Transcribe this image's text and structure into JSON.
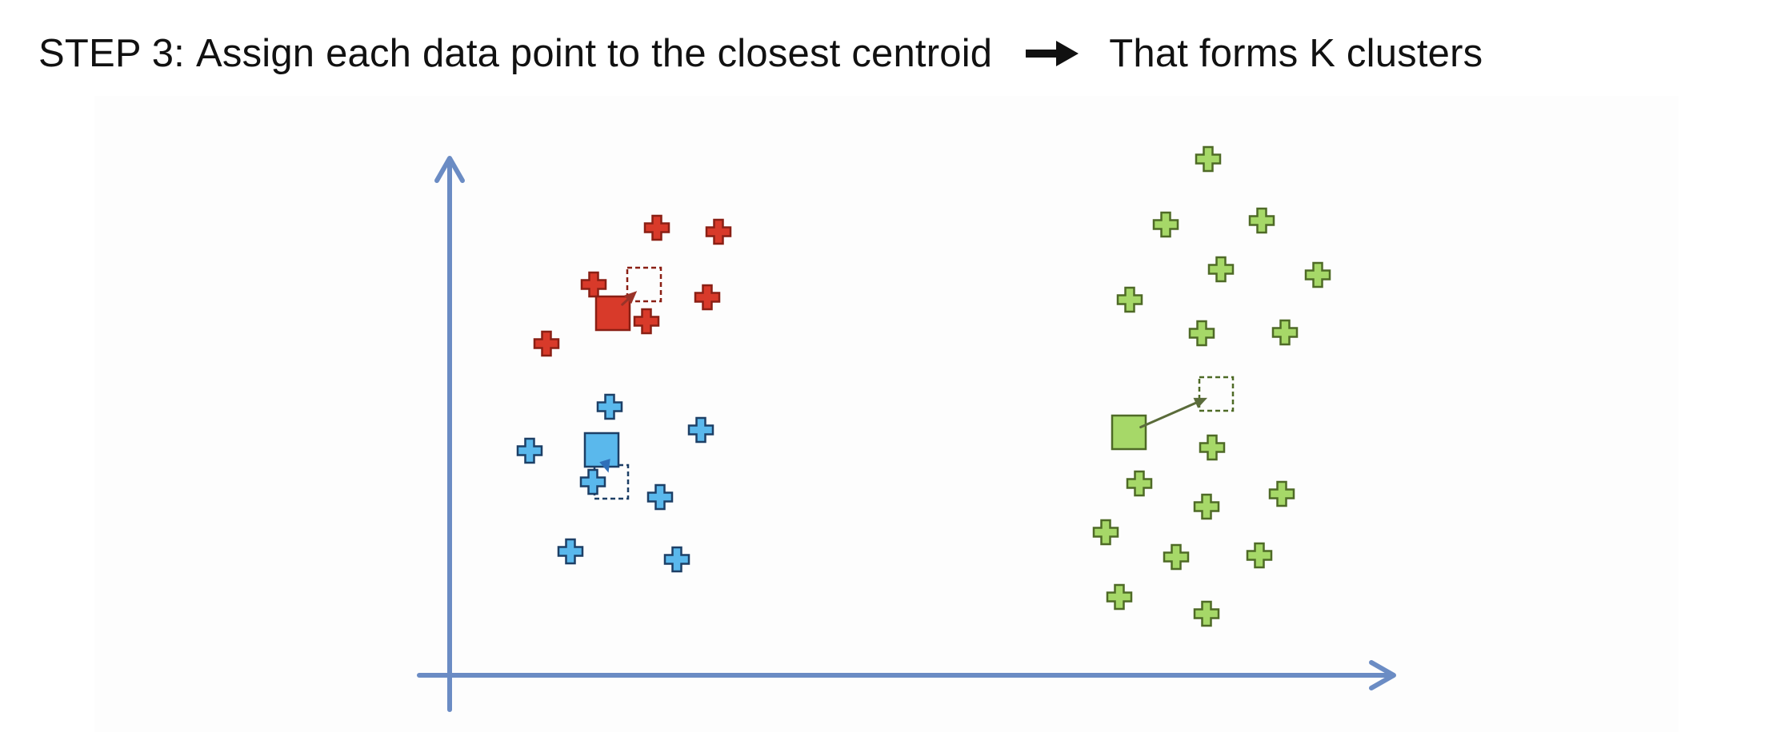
{
  "headline": {
    "step": "STEP 3:",
    "text": "Assign each data point to the closest centroid",
    "arrow_icon": "heavy-right-arrow-icon",
    "result": "That forms K clusters"
  },
  "colors": {
    "axis": "#6b8cc4",
    "red_fill": "#d83a2a",
    "red_stroke": "#8a1f14",
    "blue_fill": "#5ab8ec",
    "blue_stroke": "#1d3f66",
    "green_fill": "#a6d868",
    "green_stroke": "#4e6a26",
    "red_arrow": "#9a3328",
    "blue_arrow": "#2f6fb8",
    "green_arrow": "#5a6b3a"
  },
  "clusters": [
    {
      "name": "red",
      "points": [
        [
          821,
          285
        ],
        [
          898,
          290
        ],
        [
          742,
          356
        ],
        [
          884,
          372
        ],
        [
          808,
          402
        ],
        [
          683,
          430
        ]
      ],
      "centroid": [
        766,
        392
      ],
      "new_centroid": [
        805,
        356
      ]
    },
    {
      "name": "blue",
      "points": [
        [
          762,
          509
        ],
        [
          876,
          538
        ],
        [
          662,
          564
        ],
        [
          741,
          603
        ],
        [
          825,
          622
        ],
        [
          713,
          690
        ],
        [
          846,
          700
        ]
      ],
      "centroid": [
        752,
        563
      ],
      "new_centroid": [
        764,
        603
      ]
    },
    {
      "name": "green",
      "points": [
        [
          1510,
          199
        ],
        [
          1457,
          281
        ],
        [
          1577,
          276
        ],
        [
          1526,
          337
        ],
        [
          1647,
          344
        ],
        [
          1412,
          375
        ],
        [
          1502,
          417
        ],
        [
          1606,
          416
        ],
        [
          1515,
          560
        ],
        [
          1424,
          605
        ],
        [
          1602,
          618
        ],
        [
          1508,
          634
        ],
        [
          1382,
          666
        ],
        [
          1470,
          697
        ],
        [
          1574,
          695
        ],
        [
          1399,
          747
        ],
        [
          1508,
          768
        ]
      ],
      "centroid": [
        1411,
        541
      ],
      "new_centroid": [
        1520,
        493
      ]
    }
  ]
}
